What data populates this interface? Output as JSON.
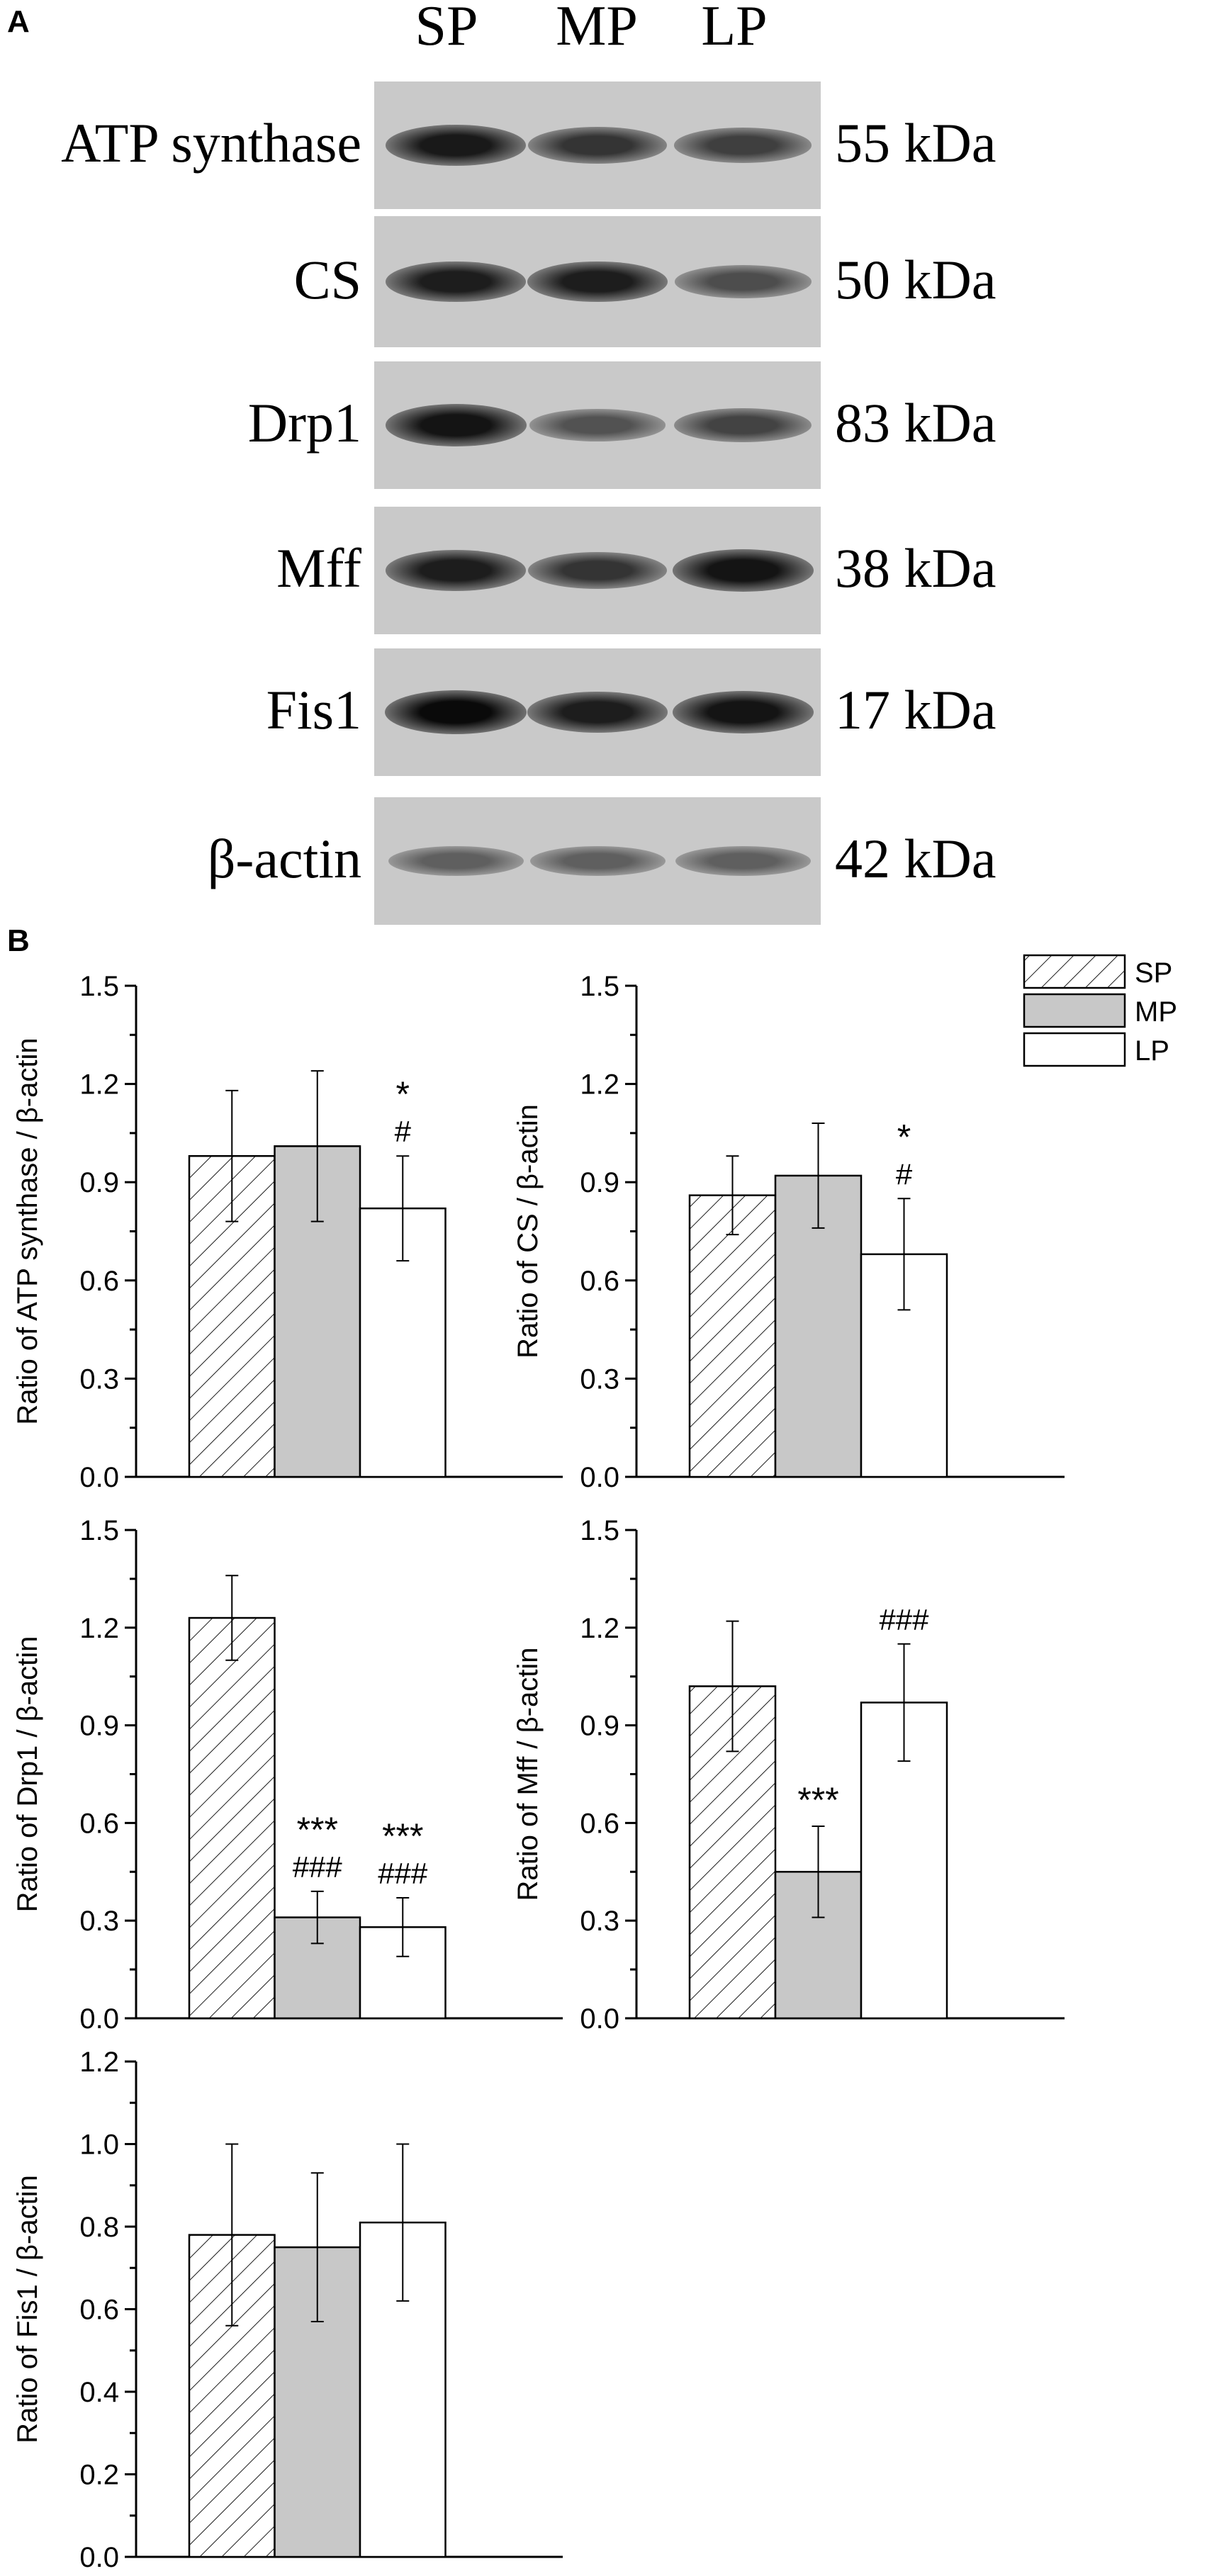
{
  "panels": {
    "a": "A",
    "b": "B"
  },
  "blot": {
    "lanes": [
      "SP",
      "MP",
      "LP"
    ],
    "rows": [
      {
        "protein": "ATP synthase",
        "kda": "55 kDa",
        "intensity": [
          0.92,
          0.78,
          0.72
        ]
      },
      {
        "protein": "CS",
        "kda": "50 kDa",
        "intensity": [
          0.9,
          0.9,
          0.65
        ]
      },
      {
        "protein": "Drp1",
        "kda": "83 kDa",
        "intensity": [
          0.95,
          0.62,
          0.7
        ]
      },
      {
        "protein": "Mff",
        "kda": "38 kDa",
        "intensity": [
          0.9,
          0.78,
          0.95
        ]
      },
      {
        "protein": "Fis1",
        "kda": "17 kDa",
        "intensity": [
          1.0,
          0.9,
          0.95
        ]
      },
      {
        "protein": "β-actin",
        "kda": "42 kDa",
        "intensity": [
          0.55,
          0.55,
          0.55
        ]
      }
    ]
  },
  "legend": {
    "entries": [
      "SP",
      "MP",
      "LP"
    ],
    "placement": "top-right"
  },
  "series_style": [
    {
      "name": "SP",
      "fill": "hatch",
      "color": "#ffffff"
    },
    {
      "name": "MP",
      "fill": "solid",
      "color": "#c8c8c8"
    },
    {
      "name": "LP",
      "fill": "solid",
      "color": "#ffffff"
    }
  ],
  "chart_data": [
    {
      "type": "bar",
      "categories": [
        "SP",
        "MP",
        "LP"
      ],
      "values": [
        0.98,
        1.01,
        0.82
      ],
      "errors": [
        0.2,
        0.23,
        0.16
      ],
      "annotations": [
        "",
        "",
        "*\n#"
      ],
      "ylabel": "Ratio of ATP synthase / β-actin",
      "ylim": [
        0,
        1.5
      ],
      "yticks": [
        "0.0",
        "0.3",
        "0.6",
        "0.9",
        "1.2",
        "1.5"
      ]
    },
    {
      "type": "bar",
      "categories": [
        "SP",
        "MP",
        "LP"
      ],
      "values": [
        0.86,
        0.92,
        0.68
      ],
      "errors": [
        0.12,
        0.16,
        0.17
      ],
      "annotations": [
        "",
        "",
        "*\n#"
      ],
      "ylabel": "Ratio of CS / β-actin",
      "ylim": [
        0,
        1.5
      ],
      "yticks": [
        "0.0",
        "0.3",
        "0.6",
        "0.9",
        "1.2",
        "1.5"
      ]
    },
    {
      "type": "bar",
      "categories": [
        "SP",
        "MP",
        "LP"
      ],
      "values": [
        1.23,
        0.31,
        0.28
      ],
      "errors": [
        0.13,
        0.08,
        0.09
      ],
      "annotations": [
        "",
        "***\n###",
        "***\n###"
      ],
      "ylabel": "Ratio of Drp1 / β-actin",
      "ylim": [
        0,
        1.5
      ],
      "yticks": [
        "0.0",
        "0.3",
        "0.6",
        "0.9",
        "1.2",
        "1.5"
      ]
    },
    {
      "type": "bar",
      "categories": [
        "SP",
        "MP",
        "LP"
      ],
      "values": [
        1.02,
        0.45,
        0.97
      ],
      "errors": [
        0.2,
        0.14,
        0.18
      ],
      "annotations": [
        "",
        "***",
        "###"
      ],
      "ylabel": "Ratio of Mff / β-actin",
      "ylim": [
        0,
        1.5
      ],
      "yticks": [
        "0.0",
        "0.3",
        "0.6",
        "0.9",
        "1.2",
        "1.5"
      ]
    },
    {
      "type": "bar",
      "categories": [
        "SP",
        "MP",
        "LP"
      ],
      "values": [
        0.78,
        0.75,
        0.81
      ],
      "errors": [
        0.22,
        0.18,
        0.19
      ],
      "annotations": [
        "",
        "",
        ""
      ],
      "ylabel": "Ratio of Fis1 / β-actin",
      "ylim": [
        0,
        1.2
      ],
      "yticks": [
        "0.0",
        "0.2",
        "0.4",
        "0.6",
        "0.8",
        "1.0",
        "1.2"
      ]
    }
  ]
}
